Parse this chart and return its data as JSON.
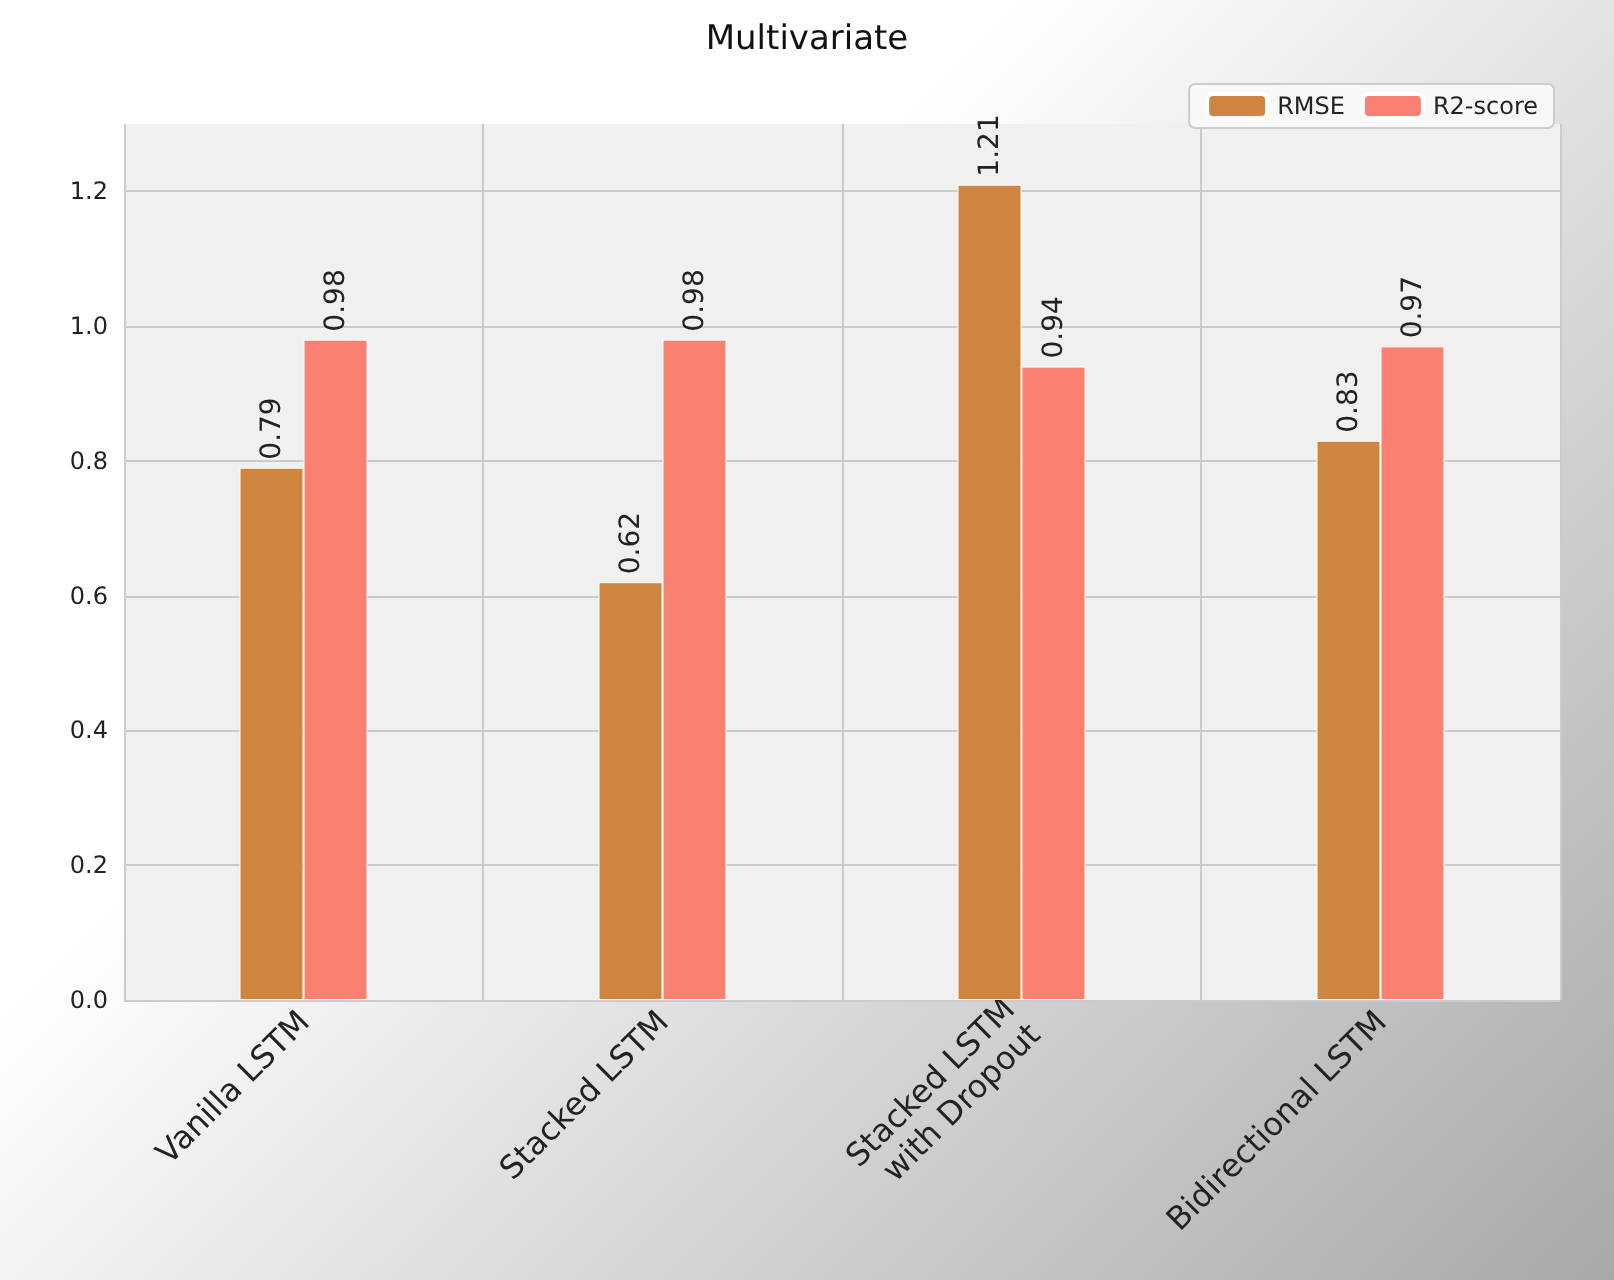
{
  "chart_data": {
    "type": "bar",
    "title": "Multivariate",
    "categories": [
      "Vanilla LSTM",
      "Stacked LSTM",
      "Stacked LSTM\nwith Dropout",
      "Bidirectional LSTM"
    ],
    "series": [
      {
        "name": "RMSE",
        "color": "#cd853f",
        "values": [
          0.79,
          0.62,
          1.21,
          0.83
        ]
      },
      {
        "name": "R2-score",
        "color": "#fa8072",
        "values": [
          0.98,
          0.98,
          0.94,
          0.97
        ]
      }
    ],
    "ylim": [
      0,
      1.3
    ],
    "yticks": [
      {
        "value": 0,
        "label": "0.0"
      },
      0.2,
      0.4,
      0.6,
      0.8,
      {
        "value": 1,
        "label": "1.0"
      },
      1.2
    ],
    "grid": true,
    "legend": "top right",
    "data_labels": true
  }
}
